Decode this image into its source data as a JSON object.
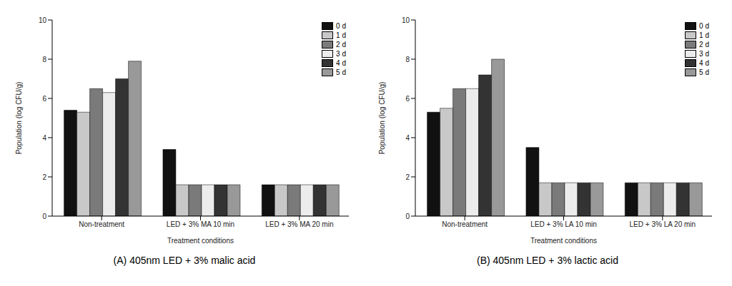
{
  "chart_data": [
    {
      "type": "bar",
      "title": "(A) 405nm LED + 3% malic acid",
      "x_label": "Treatment conditions",
      "y_label": "Population (log CFU/g)",
      "categories": [
        "Non-treatment",
        "LED + 3% MA 10 min",
        "LED + 3% MA 20 min"
      ],
      "series": [
        {
          "name": "0 d",
          "color": "#111111",
          "values": [
            5.4,
            3.4,
            1.6
          ]
        },
        {
          "name": "1 d",
          "color": "#c8c8c8",
          "values": [
            5.3,
            1.6,
            1.6
          ]
        },
        {
          "name": "2 d",
          "color": "#7a7a7a",
          "values": [
            6.5,
            1.6,
            1.6
          ]
        },
        {
          "name": "3 d",
          "color": "#ececec",
          "values": [
            6.3,
            1.6,
            1.6
          ]
        },
        {
          "name": "4 d",
          "color": "#333333",
          "values": [
            7.0,
            1.6,
            1.6
          ]
        },
        {
          "name": "5 d",
          "color": "#999999",
          "values": [
            7.9,
            1.6,
            1.6
          ]
        }
      ],
      "ylim": [
        0,
        10
      ],
      "yticks": [
        0,
        2,
        4,
        6,
        8,
        10
      ]
    },
    {
      "type": "bar",
      "title": "(B) 405nm LED + 3% lactic acid",
      "x_label": "Treatment conditions",
      "y_label": "Population (log CFU/g)",
      "categories": [
        "Non-treatment",
        "LED + 3% LA 10 min",
        "LED + 3% LA 20 min"
      ],
      "series": [
        {
          "name": "0 d",
          "color": "#111111",
          "values": [
            5.3,
            3.5,
            1.7
          ]
        },
        {
          "name": "1 d",
          "color": "#c8c8c8",
          "values": [
            5.5,
            1.7,
            1.7
          ]
        },
        {
          "name": "2 d",
          "color": "#7a7a7a",
          "values": [
            6.5,
            1.7,
            1.7
          ]
        },
        {
          "name": "3 d",
          "color": "#ececec",
          "values": [
            6.5,
            1.7,
            1.7
          ]
        },
        {
          "name": "4 d",
          "color": "#333333",
          "values": [
            7.2,
            1.7,
            1.7
          ]
        },
        {
          "name": "5 d",
          "color": "#999999",
          "values": [
            8.0,
            1.7,
            1.7
          ]
        }
      ],
      "ylim": [
        0,
        10
      ],
      "yticks": [
        0,
        2,
        4,
        6,
        8,
        10
      ]
    }
  ]
}
